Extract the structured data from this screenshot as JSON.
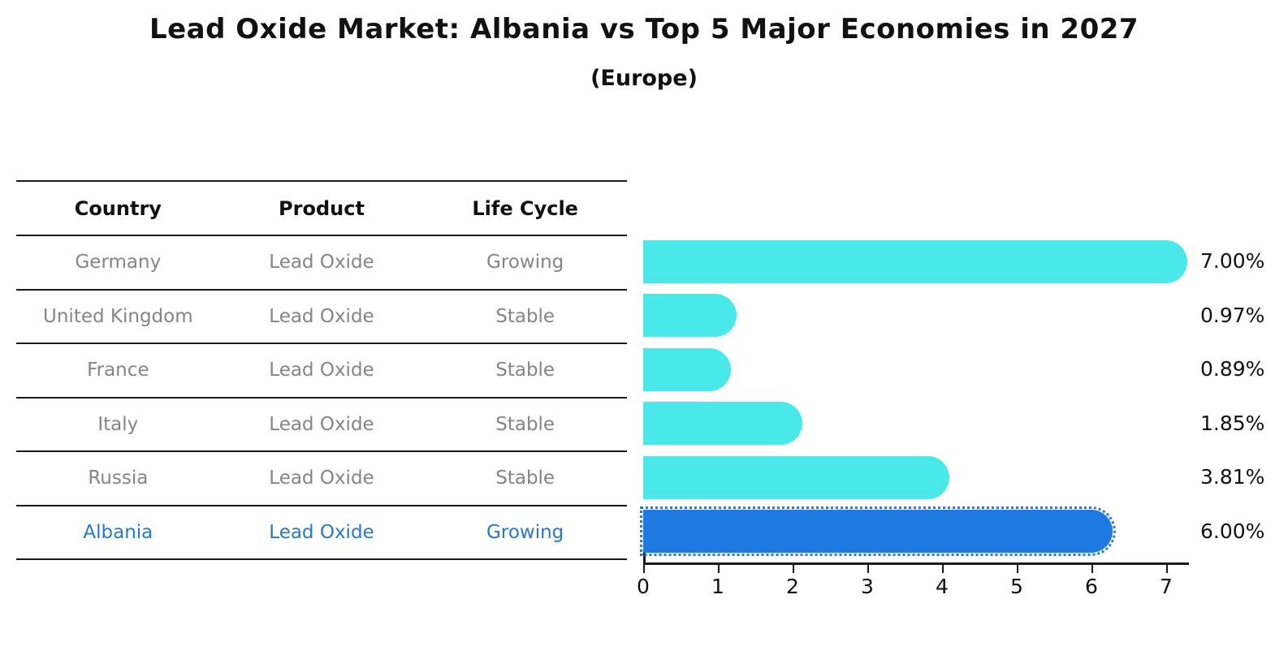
{
  "title": "Lead Oxide Market: Albania vs Top 5 Major Economies in 2027",
  "subtitle": "(Europe)",
  "table": {
    "headers": [
      "Country",
      "Product",
      "Life Cycle"
    ],
    "rows": [
      {
        "country": "Germany",
        "product": "Lead Oxide",
        "life_cycle": "Growing",
        "highlight": false
      },
      {
        "country": "United Kingdom",
        "product": "Lead Oxide",
        "life_cycle": "Stable",
        "highlight": false
      },
      {
        "country": "France",
        "product": "Lead Oxide",
        "life_cycle": "Stable",
        "highlight": false
      },
      {
        "country": "Italy",
        "product": "Lead Oxide",
        "life_cycle": "Stable",
        "highlight": false
      },
      {
        "country": "Russia",
        "product": "Lead Oxide",
        "life_cycle": "Stable",
        "highlight": false
      },
      {
        "country": "Albania",
        "product": "Lead Oxide",
        "life_cycle": "Growing",
        "highlight": true
      }
    ]
  },
  "chart_data": {
    "type": "bar",
    "orientation": "horizontal",
    "title": "Lead Oxide Market: Albania vs Top 5 Major Economies in 2027",
    "subtitle": "(Europe)",
    "categories": [
      "Germany",
      "United Kingdom",
      "France",
      "Italy",
      "Russia",
      "Albania"
    ],
    "values": [
      7.0,
      0.97,
      0.89,
      1.85,
      3.81,
      6.0
    ],
    "value_labels": [
      "7.00%",
      "0.97%",
      "0.89%",
      "1.85%",
      "3.81%",
      "6.00%"
    ],
    "highlight_index": 5,
    "x_ticks": [
      0,
      1,
      2,
      3,
      4,
      5,
      6,
      7
    ],
    "xlim": [
      0,
      7.3
    ],
    "grid": false,
    "legend": false,
    "bar_color": "#4ae8e8",
    "highlight_color": "#1e7ae0",
    "highlight_border_style": "dotted"
  },
  "colors": {
    "bar_cyan": "#4ae8e8",
    "bar_blue": "#1e7ae0",
    "highlight_text": "#2478d2",
    "muted_text": "#858585",
    "axis": "#1a1a1a"
  }
}
